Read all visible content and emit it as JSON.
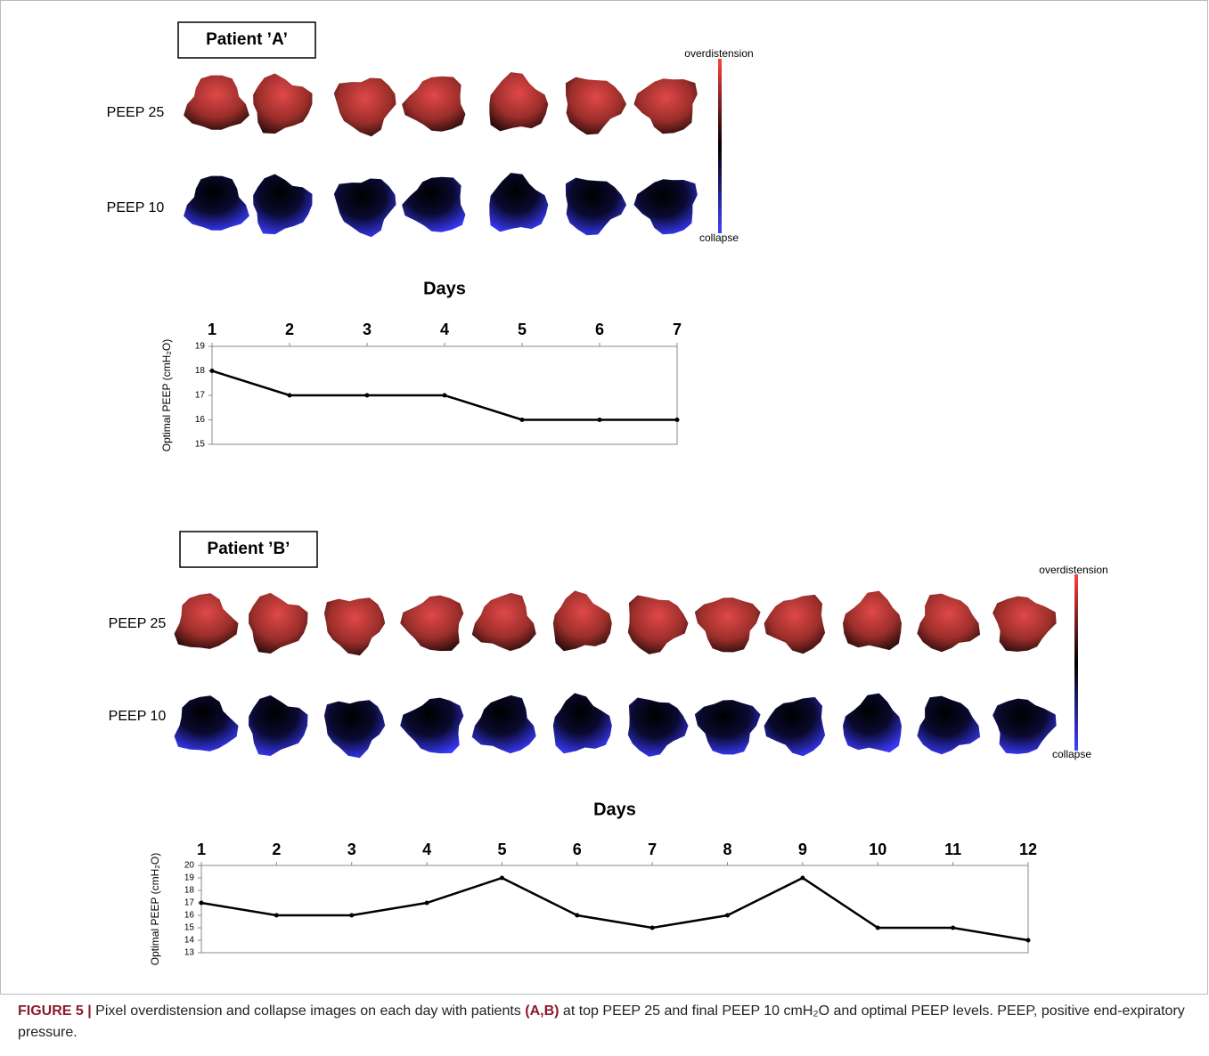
{
  "panels": [
    {
      "title": "Patient ’A’",
      "row_labels": [
        "PEEP 25",
        "PEEP 10"
      ],
      "scale_labels": [
        "overdistension",
        "collapse"
      ]
    },
    {
      "title": "Patient ’B’",
      "row_labels": [
        "PEEP 25",
        "PEEP 10"
      ],
      "scale_labels": [
        "overdistension",
        "collapse"
      ]
    }
  ],
  "chart_data": [
    {
      "type": "line",
      "title": "Days",
      "ylabel": "Optimal PEEP (cmH₂O)",
      "color": "#000000",
      "grid": false,
      "x": [
        1,
        2,
        3,
        4,
        5,
        6,
        7
      ],
      "values": [
        18,
        17,
        17,
        17,
        16,
        16,
        16
      ],
      "xlim": [
        1,
        7
      ],
      "xticks": [
        1,
        2,
        3,
        4,
        5,
        6,
        7
      ],
      "ylim": [
        15,
        19
      ],
      "yticks": [
        15,
        16,
        17,
        18,
        19
      ]
    },
    {
      "type": "line",
      "title": "Days",
      "ylabel": "Optimal PEEP (cmH₂O)",
      "color": "#000000",
      "grid": false,
      "x": [
        1,
        2,
        3,
        4,
        5,
        6,
        7,
        8,
        9,
        10,
        11,
        12
      ],
      "values": [
        17,
        16,
        16,
        17,
        19,
        16,
        15,
        16,
        19,
        15,
        15,
        14
      ],
      "xlim": [
        1,
        12
      ],
      "xticks": [
        1,
        2,
        3,
        4,
        5,
        6,
        7,
        8,
        9,
        10,
        11,
        12
      ],
      "ylim": [
        13,
        20
      ],
      "yticks": [
        13,
        14,
        15,
        16,
        17,
        18,
        19,
        20
      ]
    }
  ],
  "caption": {
    "label": "FIGURE 5 |",
    "text_1": "Pixel overdistension and collapse images on each day with patients",
    "bold": "(A,B)",
    "text_2": "at top PEEP 25 and final PEEP 10 cmH₂O and optimal PEEP levels. PEEP, positive end-expiratory pressure."
  }
}
